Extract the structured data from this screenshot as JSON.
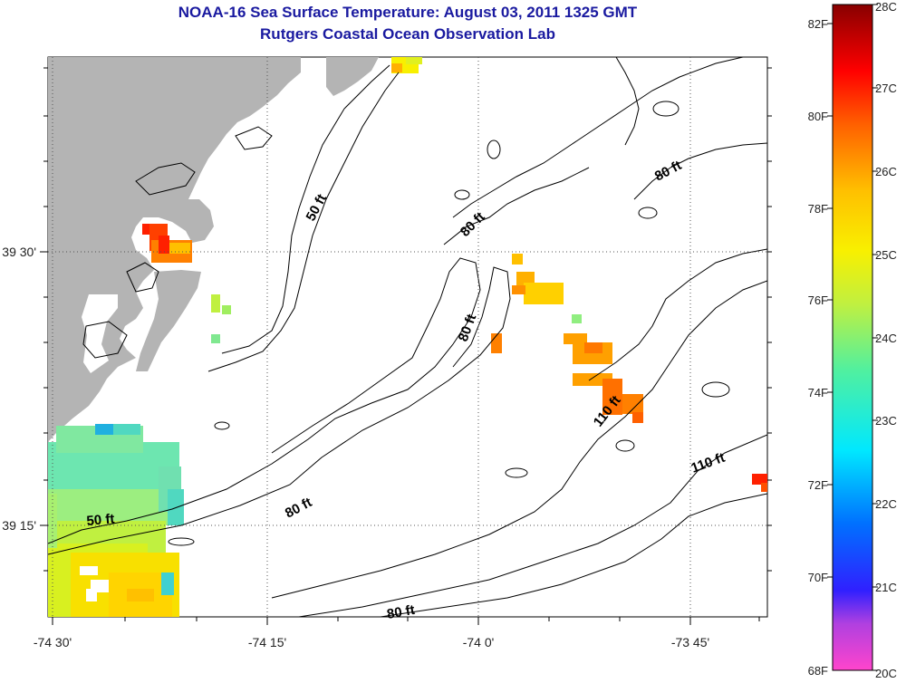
{
  "header": {
    "title": "NOAA-16 Sea Surface Temperature:  August 03, 2011 1325 GMT",
    "subtitle": "Rutgers Coastal Ocean Observation Lab"
  },
  "axes": {
    "x_ticks": [
      "-74 30'",
      "-74 15'",
      "-74 0'",
      "-73 45'"
    ],
    "y_ticks": [
      "39 30'",
      "39 15'"
    ]
  },
  "contour_labels": [
    "50 ft",
    "80 ft",
    "80 ft",
    "80 ft",
    "110 ft",
    "110 ft",
    "50 ft",
    "80 ft",
    "80 ft"
  ],
  "colorbar": {
    "fahrenheit": [
      "82F",
      "80F",
      "78F",
      "76F",
      "74F",
      "72F",
      "70F",
      "68F"
    ],
    "celsius": [
      "28C",
      "27C",
      "26C",
      "25C",
      "24C",
      "23C",
      "22C",
      "21C",
      "20C"
    ]
  },
  "colors": {
    "title": "#1a1aa0",
    "land": "#b4b4b4",
    "grid": "#555555"
  }
}
